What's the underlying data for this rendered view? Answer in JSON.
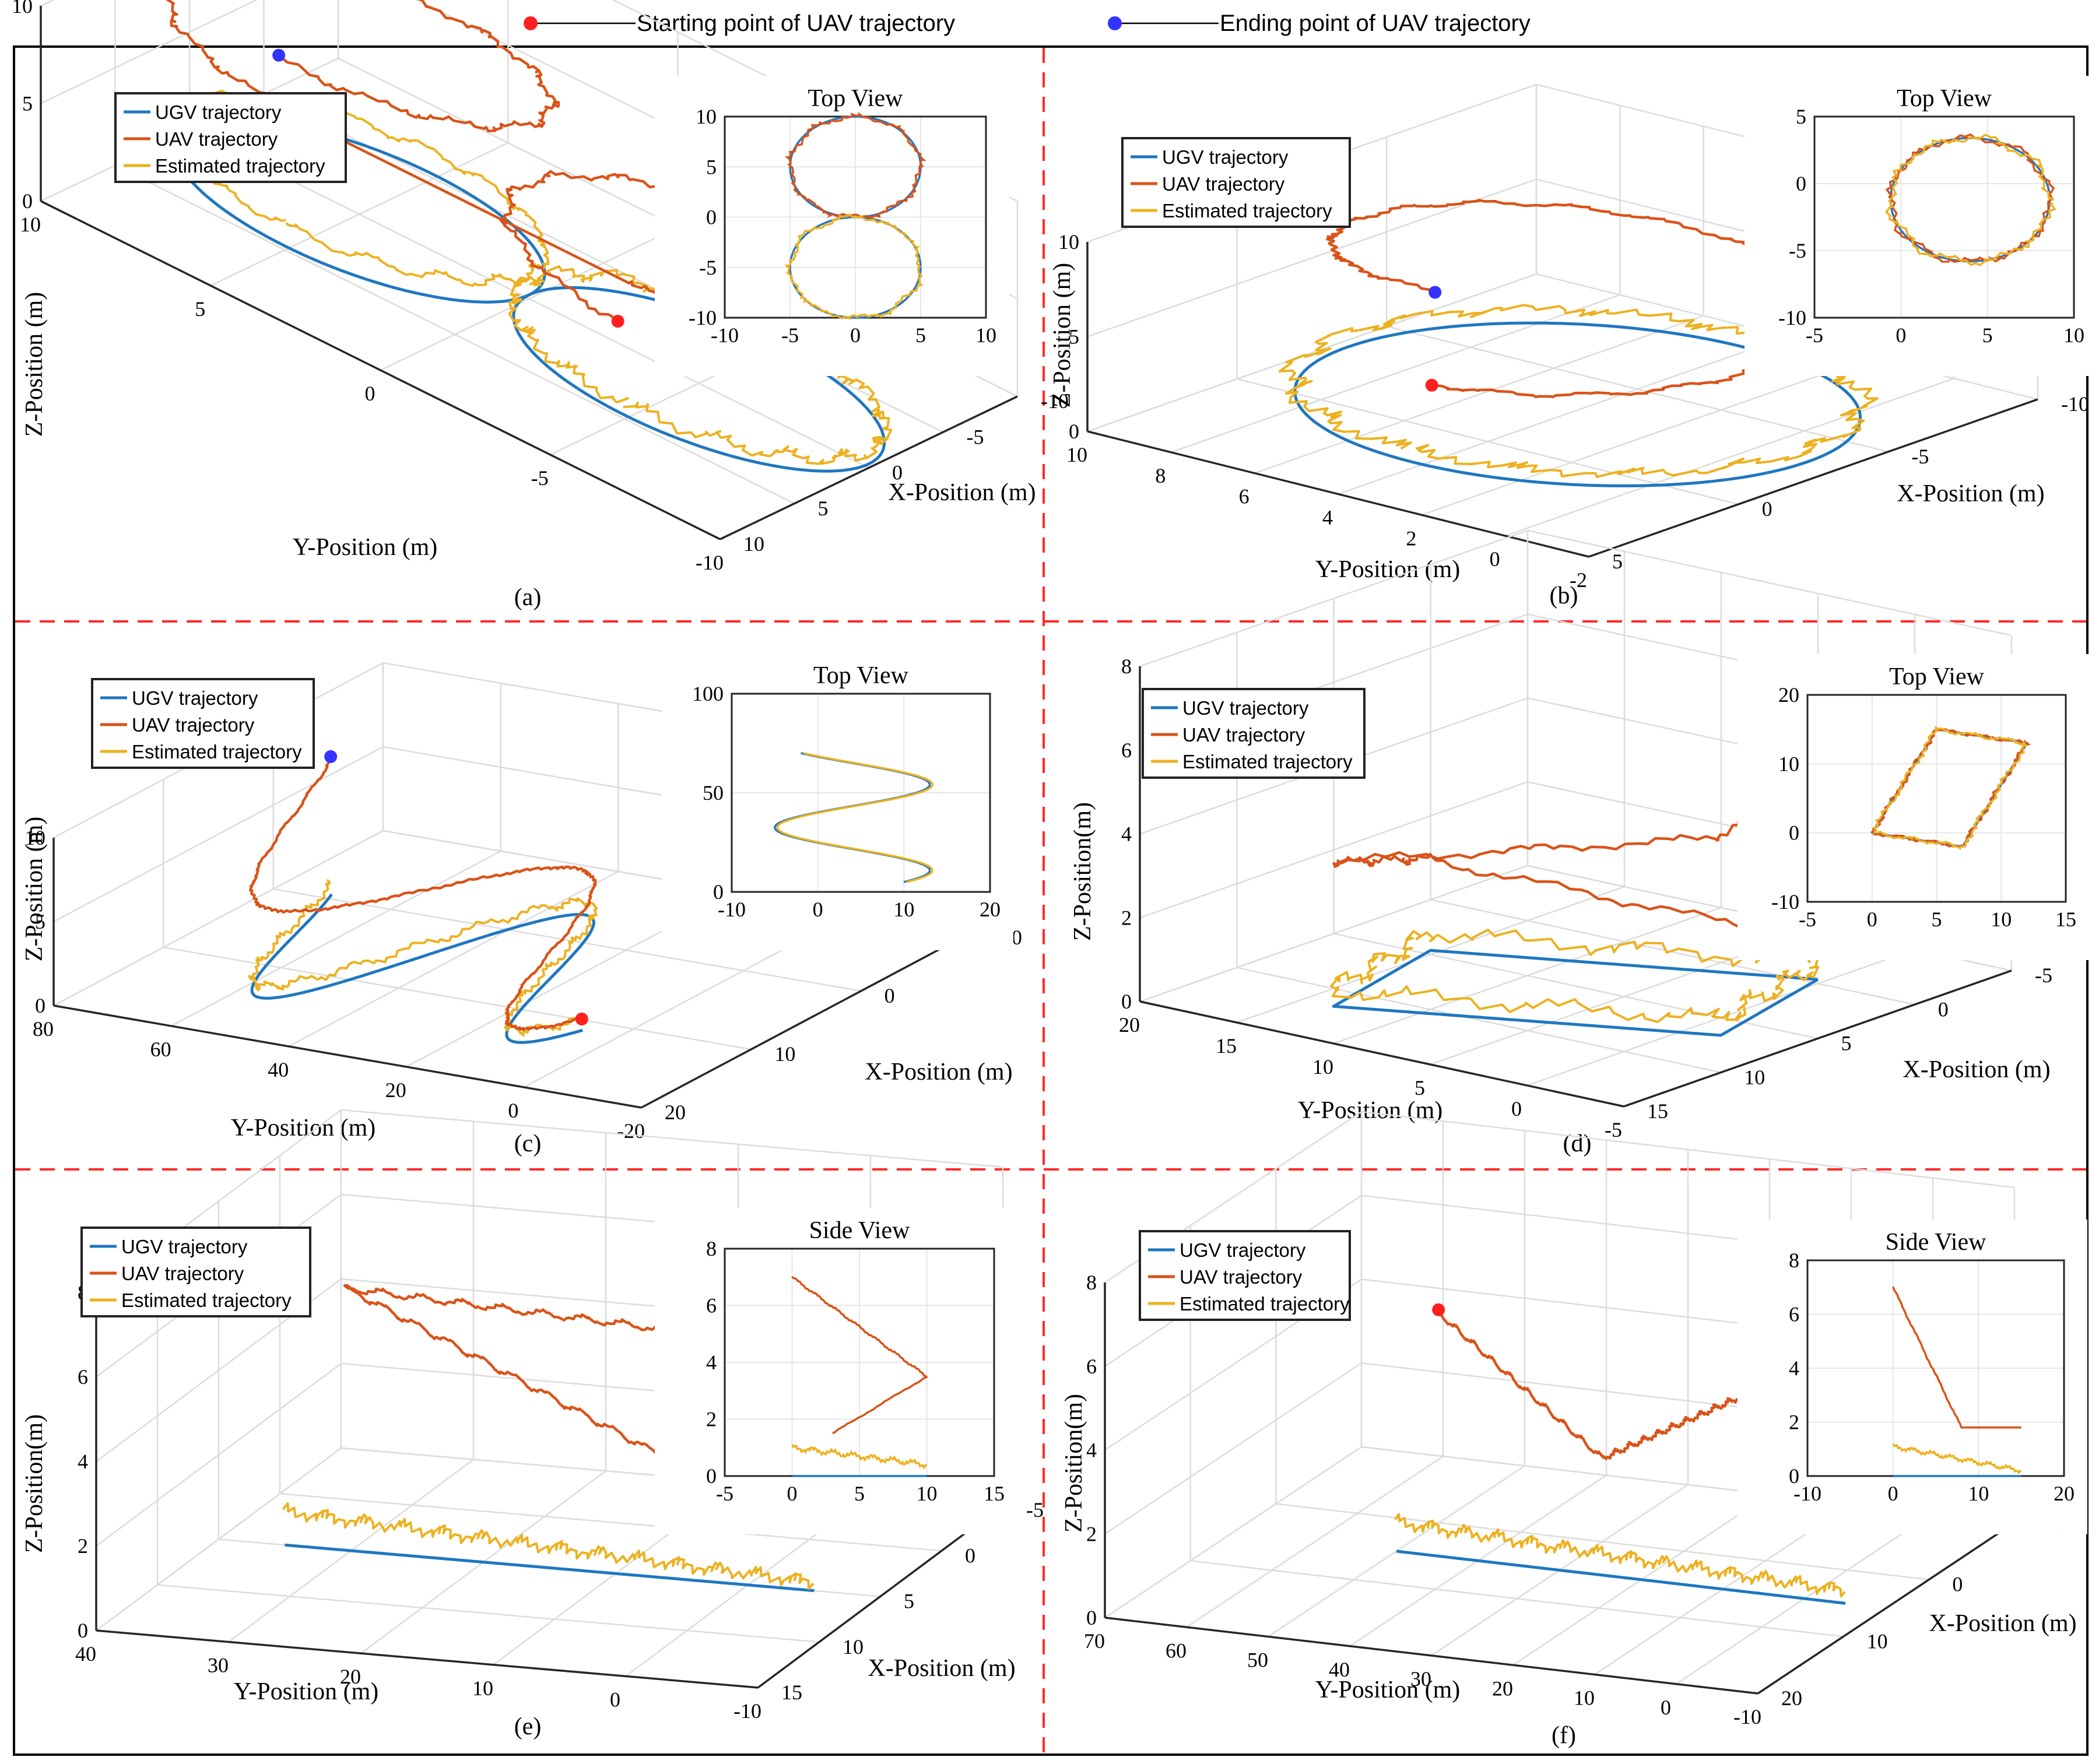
{
  "figure_legend": {
    "start_label": "Starting point of UAV trajectory",
    "end_label": "Ending point of UAV trajectory"
  },
  "colors": {
    "ugv": "#1f77c0",
    "uav": "#d95319",
    "estimated": "#edb120",
    "start_marker": "#ff1f1f",
    "end_marker": "#3333ff",
    "divider": "#ff2a2a"
  },
  "chart_data": [
    {
      "id": "a",
      "type": "line",
      "panel_label": "(a)",
      "legend": [
        "UGV trajectory",
        "UAV trajectory",
        "Estimated trajectory"
      ],
      "xlabel": "X-Position (m)",
      "ylabel": "Y-Position (m)",
      "zlabel": "Z-Position (m)",
      "xlim": [
        -10,
        10
      ],
      "ylim": [
        -10,
        10
      ],
      "zlim": [
        0,
        10
      ],
      "x_ticks": [
        "-10",
        "-5",
        "0",
        "5",
        "10"
      ],
      "y_ticks": [
        "-10",
        "-5",
        "0",
        "5",
        "10"
      ],
      "z_ticks": [
        "0",
        "5",
        "10"
      ],
      "inset": {
        "title": "Top View",
        "xlim": [
          -10,
          10
        ],
        "ylim": [
          -10,
          10
        ],
        "x_ticks": [
          "-10",
          "-5",
          "0",
          "5",
          "10"
        ],
        "y_ticks": [
          "-10",
          "-5",
          "0",
          "5",
          "10"
        ],
        "description": "figure-eight: two circles of radius 5 centered at (0,5) and (0,-5)"
      }
    },
    {
      "id": "b",
      "type": "line",
      "panel_label": "(b)",
      "legend": [
        "UGV trajectory",
        "UAV trajectory",
        "Estimated trajectory"
      ],
      "xlabel": "X-Position  (m)",
      "ylabel": "Y-Position (m)",
      "zlabel": "Z-Position (m)",
      "xlim": [
        -10,
        5
      ],
      "ylim": [
        -2,
        10
      ],
      "zlim": [
        0,
        10
      ],
      "x_ticks": [
        "-10",
        "-5",
        "0",
        "5"
      ],
      "y_ticks": [
        "-2",
        "0",
        "2",
        "4",
        "6",
        "8",
        "10"
      ],
      "z_ticks": [
        "0",
        "5",
        "10"
      ],
      "inset": {
        "title": "Top View",
        "xlim": [
          -5,
          10
        ],
        "ylim": [
          -10,
          5
        ],
        "x_ticks": [
          "-5",
          "0",
          "5",
          "10"
        ],
        "y_ticks": [
          "-10",
          "-5",
          "0",
          "5"
        ],
        "description": "single circle centered near (4,-1) radius 4.5"
      }
    },
    {
      "id": "c",
      "type": "line",
      "panel_label": "(c)",
      "legend": [
        "UGV trajectory",
        "UAV trajectory",
        "Estimated trajectory"
      ],
      "xlabel": "X-Position (m)",
      "ylabel": "Y-Position (m)",
      "zlabel": "Z-Position (m)",
      "xlim": [
        -10,
        20
      ],
      "ylim": [
        -20,
        80
      ],
      "zlim": [
        0,
        10
      ],
      "x_ticks": [
        "-10",
        "0",
        "10",
        "20"
      ],
      "y_ticks": [
        "-20",
        "0",
        "20",
        "40",
        "60",
        "80"
      ],
      "z_ticks": [
        "0",
        "5",
        "10"
      ],
      "inset": {
        "title": "Top View",
        "xlim": [
          -10,
          20
        ],
        "ylim": [
          0,
          100
        ],
        "x_ticks": [
          "-10",
          "0",
          "10",
          "20"
        ],
        "y_ticks": [
          "0",
          "50",
          "100"
        ],
        "description": "sinusoidal S-curve"
      }
    },
    {
      "id": "d",
      "type": "line",
      "panel_label": "(d)",
      "legend": [
        "UGV trajectory",
        "UAV trajectory",
        "Estimated trajectory"
      ],
      "xlabel": "X-Position (m)",
      "ylabel": "Y-Position (m)",
      "zlabel": "Z-Position(m)",
      "xlim": [
        -5,
        15
      ],
      "ylim": [
        -5,
        20
      ],
      "zlim": [
        0,
        8
      ],
      "x_ticks": [
        "-5",
        "0",
        "5",
        "10",
        "15"
      ],
      "y_ticks": [
        "-5",
        "0",
        "5",
        "10",
        "15",
        "20"
      ],
      "z_ticks": [
        "0",
        "2",
        "4",
        "6",
        "8"
      ],
      "inset": {
        "title": "Top View",
        "xlim": [
          -5,
          15
        ],
        "ylim": [
          -10,
          20
        ],
        "x_ticks": [
          "-5",
          "0",
          "5",
          "10",
          "15"
        ],
        "y_ticks": [
          "-10",
          "0",
          "10",
          "20"
        ],
        "description": "parallelogram with corners (0,0),(5,15),(12,13),(7,-2)"
      }
    },
    {
      "id": "e",
      "type": "line",
      "panel_label": "(e)",
      "legend": [
        "UGV trajectory",
        "UAV trajectory",
        "Estimated trajectory"
      ],
      "xlabel": "X-Position (m)",
      "ylabel": "Y-Position (m)",
      "zlabel": "Z-Position(m)",
      "xlim": [
        -5,
        15
      ],
      "ylim": [
        -10,
        40
      ],
      "zlim": [
        0,
        8
      ],
      "x_ticks": [
        "-5",
        "0",
        "5",
        "10",
        "15"
      ],
      "y_ticks": [
        "-10",
        "0",
        "10",
        "20",
        "30",
        "40"
      ],
      "z_ticks": [
        "0",
        "2",
        "4",
        "6",
        "8"
      ],
      "inset": {
        "title": "Side View",
        "xlim": [
          -5,
          15
        ],
        "ylim": [
          0,
          8
        ],
        "x_ticks": [
          "-5",
          "0",
          "5",
          "10",
          "15"
        ],
        "y_ticks": [
          "0",
          "2",
          "4",
          "6",
          "8"
        ],
        "description": "UAV descends from 7 to 1.5 with turn at x=10"
      }
    },
    {
      "id": "f",
      "type": "line",
      "panel_label": "(f)",
      "legend": [
        "UGV trajectory",
        "UAV trajectory",
        "Estimated trajectory"
      ],
      "xlabel": "X-Position (m)",
      "ylabel": "Y-Position (m)",
      "zlabel": "Z-Position(m)",
      "xlim": [
        -10,
        20
      ],
      "ylim": [
        -10,
        70
      ],
      "zlim": [
        0,
        8
      ],
      "x_ticks": [
        "-10",
        "0",
        "10",
        "20"
      ],
      "y_ticks": [
        "-10",
        "0",
        "10",
        "20",
        "30",
        "40",
        "50",
        "60",
        "70"
      ],
      "z_ticks": [
        "0",
        "2",
        "4",
        "6",
        "8"
      ],
      "inset": {
        "title": "Side  View",
        "xlim": [
          -10,
          20
        ],
        "ylim": [
          0,
          8
        ],
        "x_ticks": [
          "-10",
          "0",
          "10",
          "20"
        ],
        "y_ticks": [
          "0",
          "2",
          "4",
          "6",
          "8"
        ],
        "description": "UAV descends from 7 to 1.8 then level to x=15"
      }
    }
  ]
}
